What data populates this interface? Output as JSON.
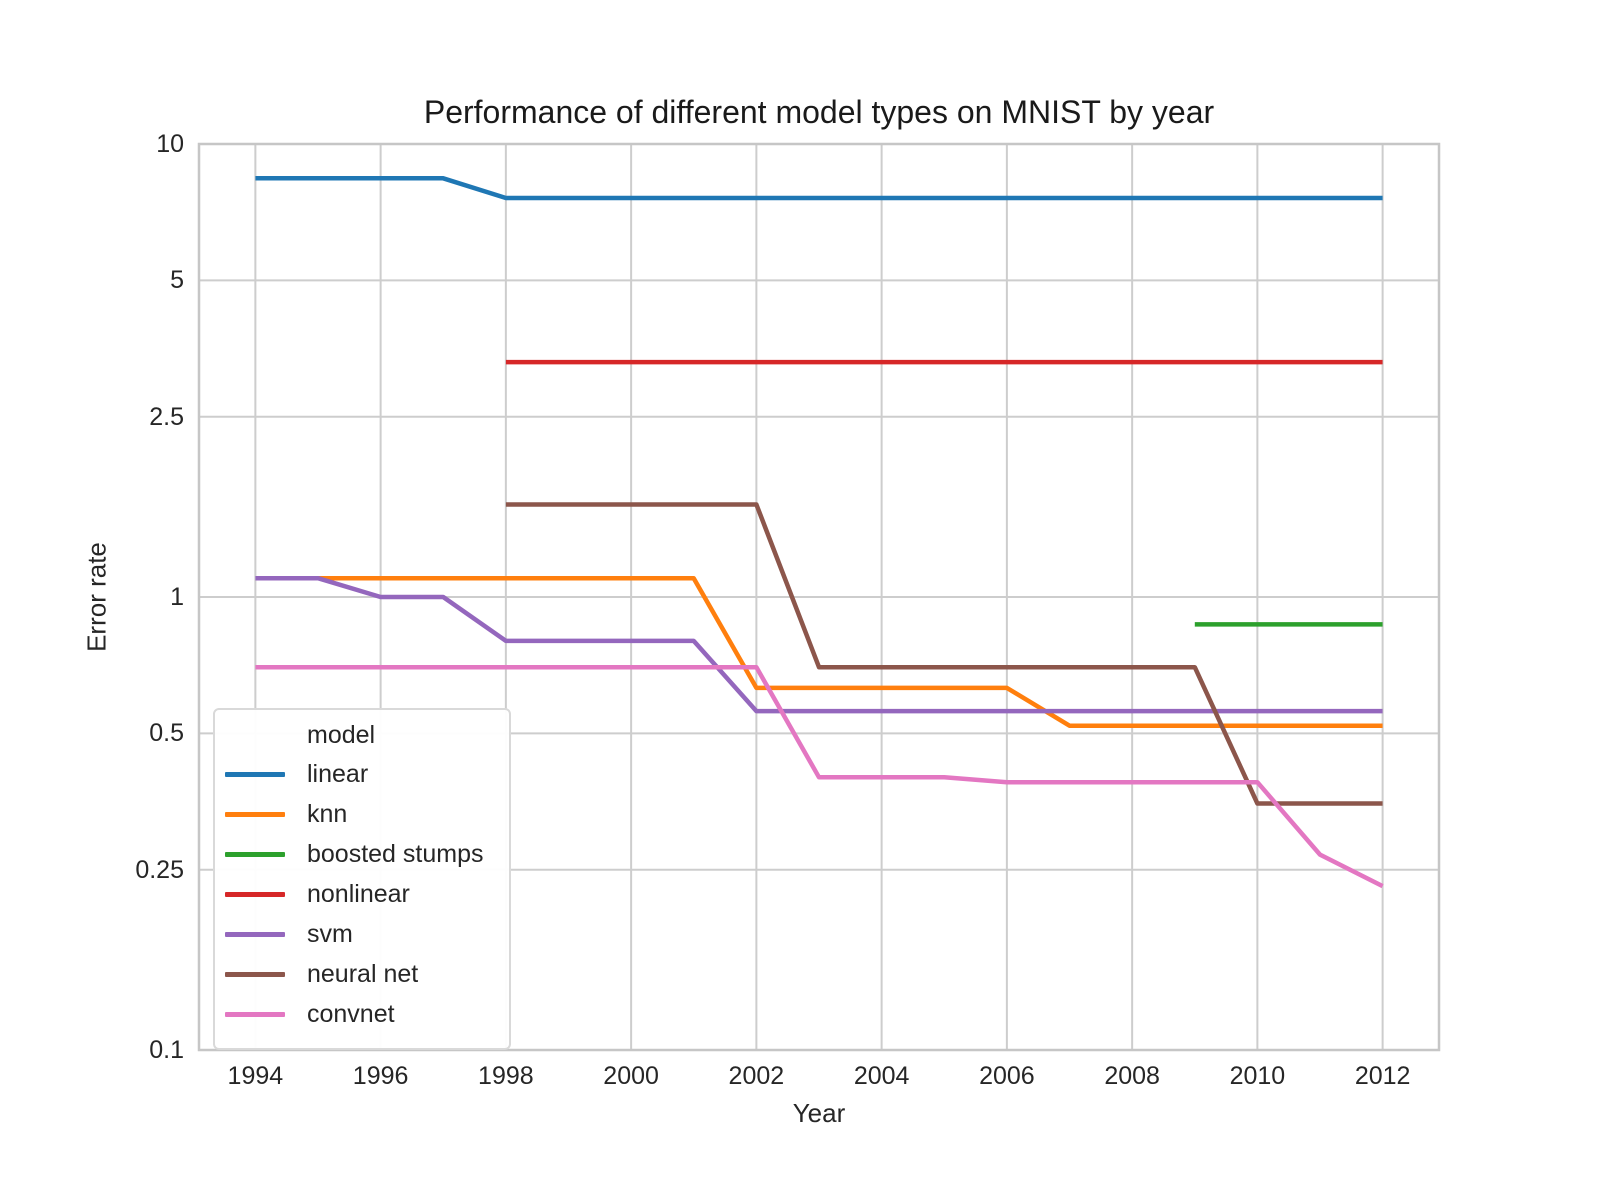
{
  "chart_data": {
    "type": "line",
    "title": "Performance of different model types on MNIST by year",
    "xlabel": "Year",
    "ylabel": "Error rate",
    "yscale": "log",
    "xlim": [
      1993.1,
      2012.9
    ],
    "ylim": [
      0.1,
      10
    ],
    "grid": true,
    "background": "#ffffff",
    "grid_color": "#cdcdcd",
    "spine_color": "#c6c6c6",
    "x_ticks": [
      {
        "value": 1994,
        "label": "1994"
      },
      {
        "value": 1996,
        "label": "1996"
      },
      {
        "value": 1998,
        "label": "1998"
      },
      {
        "value": 2000,
        "label": "2000"
      },
      {
        "value": 2002,
        "label": "2002"
      },
      {
        "value": 2004,
        "label": "2004"
      },
      {
        "value": 2006,
        "label": "2006"
      },
      {
        "value": 2008,
        "label": "2008"
      },
      {
        "value": 2010,
        "label": "2010"
      },
      {
        "value": 2012,
        "label": "2012"
      }
    ],
    "y_ticks": [
      {
        "value": 10,
        "label": "10"
      },
      {
        "value": 5,
        "label": "5"
      },
      {
        "value": 2.5,
        "label": "2.5"
      },
      {
        "value": 1,
        "label": "1"
      },
      {
        "value": 0.5,
        "label": "0.5"
      },
      {
        "value": 0.25,
        "label": "0.25"
      },
      {
        "value": 0.1,
        "label": "0.1"
      }
    ],
    "legend": {
      "title": "model",
      "position": "lower left"
    },
    "series": [
      {
        "name": "linear",
        "color": "#1f77b4",
        "points": [
          [
            1994,
            8.4
          ],
          [
            1997,
            8.4
          ],
          [
            1998,
            7.6
          ],
          [
            2012,
            7.6
          ]
        ]
      },
      {
        "name": "knn",
        "color": "#ff7f0e",
        "points": [
          [
            1995,
            1.1
          ],
          [
            2001,
            1.1
          ],
          [
            2002,
            0.63
          ],
          [
            2006,
            0.63
          ],
          [
            2007,
            0.52
          ],
          [
            2012,
            0.52
          ]
        ]
      },
      {
        "name": "boosted stumps",
        "color": "#2ca02c",
        "points": [
          [
            2009,
            0.87
          ],
          [
            2012,
            0.87
          ]
        ]
      },
      {
        "name": "nonlinear",
        "color": "#d62728",
        "points": [
          [
            1998,
            3.3
          ],
          [
            2012,
            3.3
          ]
        ]
      },
      {
        "name": "svm",
        "color": "#9467bd",
        "points": [
          [
            1994,
            1.1
          ],
          [
            1995,
            1.1
          ],
          [
            1996,
            1.0
          ],
          [
            1997,
            1.0
          ],
          [
            1998,
            0.8
          ],
          [
            2001,
            0.8
          ],
          [
            2002,
            0.56
          ],
          [
            2012,
            0.56
          ]
        ]
      },
      {
        "name": "neural net",
        "color": "#8c564b",
        "points": [
          [
            1998,
            1.6
          ],
          [
            2002,
            1.6
          ],
          [
            2003,
            0.7
          ],
          [
            2009,
            0.7
          ],
          [
            2010,
            0.35
          ],
          [
            2012,
            0.35
          ]
        ]
      },
      {
        "name": "convnet",
        "color": "#e377c2",
        "points": [
          [
            1994,
            0.7
          ],
          [
            2002,
            0.7
          ],
          [
            2003,
            0.4
          ],
          [
            2005,
            0.4
          ],
          [
            2006,
            0.39
          ],
          [
            2010,
            0.39
          ],
          [
            2011,
            0.27
          ],
          [
            2012,
            0.23
          ]
        ]
      }
    ]
  }
}
